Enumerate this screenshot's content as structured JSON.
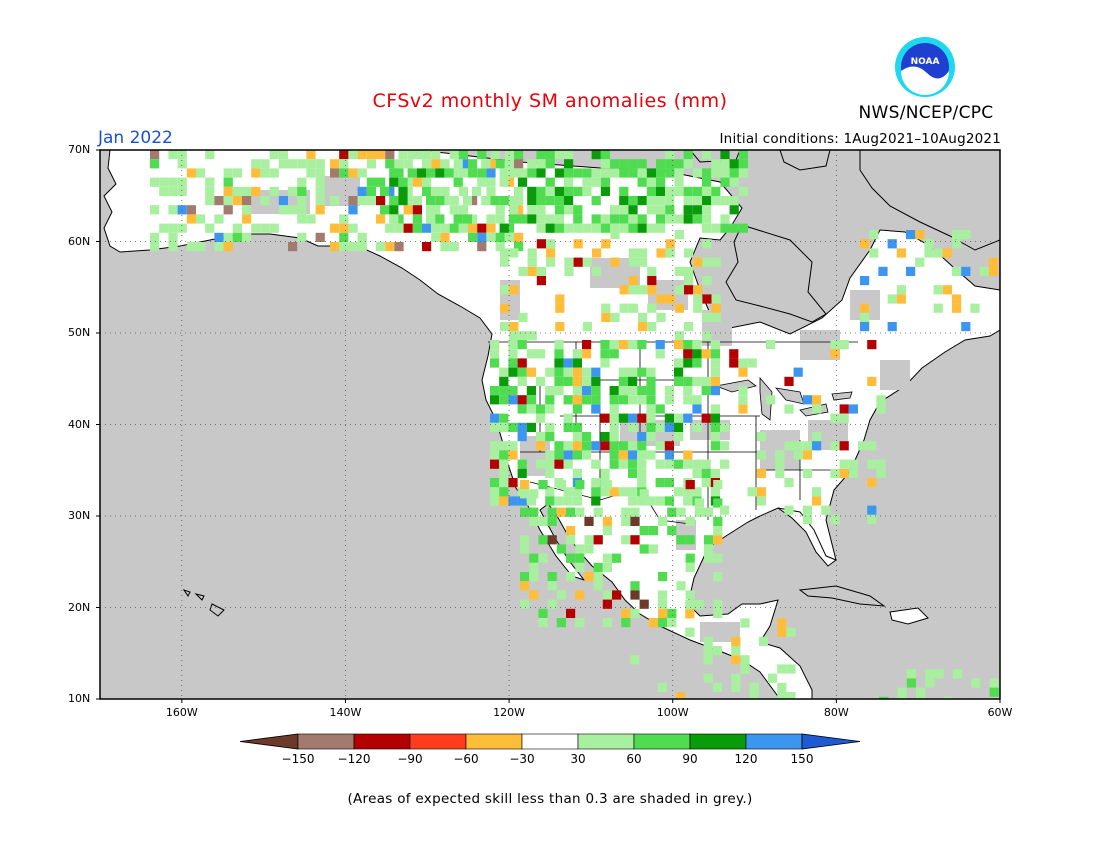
{
  "title": "CFSv2 monthly SM anomalies (mm)",
  "agency": "NWS/NCEP/CPC",
  "logo_text": "NOAA",
  "valid_month": "Jan 2022",
  "initial_conditions": "Initial conditions: 1Aug2021–10Aug2021",
  "note": "(Areas of expected skill less than 0.3 are shaded in grey.)",
  "map": {
    "lat_labels": [
      "70N",
      "60N",
      "50N",
      "40N",
      "30N",
      "20N",
      "10N"
    ],
    "lon_labels": [
      "160W",
      "140W",
      "120W",
      "100W",
      "80W",
      "60W"
    ],
    "lat_range": [
      10,
      70
    ],
    "lon_range": [
      -170,
      -60
    ],
    "grid": "dotted",
    "land_skill_shade": "#c8c8c8",
    "ocean_color": "#c8c8c8"
  },
  "colorbar": {
    "labels": [
      "−150",
      "−120",
      "−90",
      "−60",
      "−30",
      "30",
      "60",
      "90",
      "120",
      "150"
    ],
    "colors": [
      "#6b3a2a",
      "#a27a6e",
      "#b40000",
      "#ff3c1e",
      "#ffbd3a",
      "#ffffff",
      "#a8f0a0",
      "#50dc50",
      "#0a9b0a",
      "#3c96f0",
      "#1e5ad2"
    ],
    "extend": "both"
  }
}
